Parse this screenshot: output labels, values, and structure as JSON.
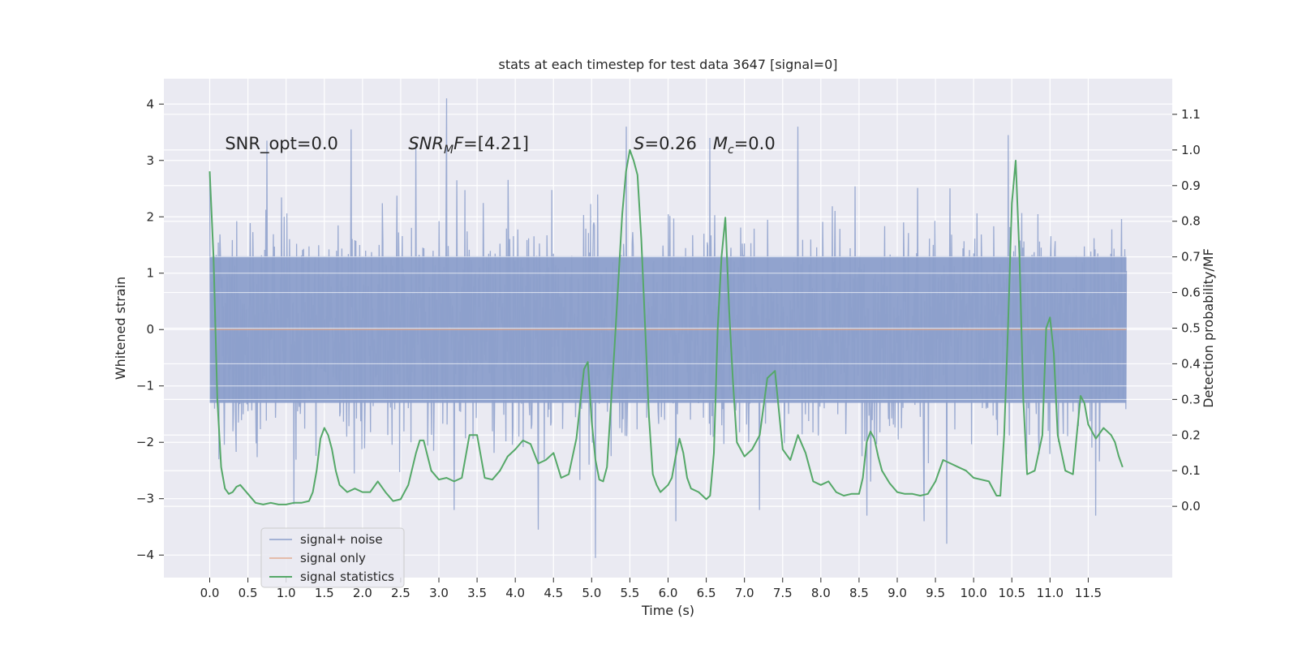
{
  "chart_data": {
    "type": "line",
    "title": "stats at each timestep for test data 3647 [signal=0]",
    "xlabel": "Time (s)",
    "ylabel": "Whitened strain",
    "y2label": "Detection probability/MF",
    "xlim": [
      -0.6,
      12.6
    ],
    "ylim": [
      -4.4,
      4.45
    ],
    "y2lim": [
      -0.2,
      1.2
    ],
    "x_ticks": [
      0.0,
      0.5,
      1.0,
      1.5,
      2.0,
      2.5,
      3.0,
      3.5,
      4.0,
      4.5,
      5.0,
      5.5,
      6.0,
      6.5,
      7.0,
      7.5,
      8.0,
      8.5,
      9.0,
      9.5,
      10.0,
      10.5,
      11.0,
      11.5
    ],
    "x_tick_labels": [
      "0.0",
      "0.5",
      "1.0",
      "1.5",
      "2.0",
      "2.5",
      "3.0",
      "3.5",
      "4.0",
      "4.5",
      "5.0",
      "5.5",
      "6.0",
      "6.5",
      "7.0",
      "7.5",
      "8.0",
      "8.5",
      "9.0",
      "9.5",
      "10.0",
      "10.5",
      "11.0",
      "11.5"
    ],
    "y_ticks": [
      -4,
      -3,
      -2,
      -1,
      0,
      1,
      2,
      3,
      4
    ],
    "y_tick_labels": [
      "−4",
      "−3",
      "−2",
      "−1",
      "0",
      "1",
      "2",
      "3",
      "4"
    ],
    "y2_ticks": [
      0.0,
      0.1,
      0.2,
      0.3,
      0.4,
      0.5,
      0.6,
      0.7,
      0.8,
      0.9,
      1.0,
      1.1
    ],
    "y2_tick_labels": [
      "0.0",
      "0.1",
      "0.2",
      "0.3",
      "0.4",
      "0.5",
      "0.6",
      "0.7",
      "0.8",
      "0.9",
      "1.0",
      "1.1"
    ],
    "grid": true,
    "legend_position": "lower-left",
    "annotations": [
      {
        "text": "SNR_opt=0.0",
        "x": 0.2,
        "y": 3.2
      },
      {
        "text": "SNR_MF=[4.21]",
        "x": 2.6,
        "y": 3.2
      },
      {
        "text": "S=0.26   M_c=0.0",
        "x": 5.55,
        "y": 3.2
      }
    ],
    "series": [
      {
        "name": "signal+ noise",
        "axis": "left",
        "color": "#8c9fcb",
        "style": "dense noise trace",
        "x_range": [
          0.0,
          12.0
        ],
        "core_band": [
          -1.3,
          1.3
        ],
        "extremes": [
          -4.05,
          4.1
        ],
        "peaks": [
          {
            "x": 0.0,
            "y": 2.75
          },
          {
            "x": 0.12,
            "y": -2.3
          },
          {
            "x": 0.75,
            "y": 3.35
          },
          {
            "x": 1.1,
            "y": -3.1
          },
          {
            "x": 1.85,
            "y": 3.55
          },
          {
            "x": 2.7,
            "y": 3.3
          },
          {
            "x": 3.1,
            "y": 4.1
          },
          {
            "x": 3.2,
            "y": -3.2
          },
          {
            "x": 4.3,
            "y": -3.55
          },
          {
            "x": 5.05,
            "y": -4.05
          },
          {
            "x": 5.45,
            "y": 3.6
          },
          {
            "x": 6.1,
            "y": -3.4
          },
          {
            "x": 6.55,
            "y": 3.4
          },
          {
            "x": 7.2,
            "y": -3.2
          },
          {
            "x": 7.7,
            "y": 3.6
          },
          {
            "x": 8.6,
            "y": -3.3
          },
          {
            "x": 9.35,
            "y": -3.4
          },
          {
            "x": 9.65,
            "y": -3.8
          },
          {
            "x": 10.45,
            "y": 3.45
          },
          {
            "x": 11.6,
            "y": -3.3
          }
        ]
      },
      {
        "name": "signal only",
        "axis": "left",
        "color": "#dd8452",
        "x": [
          0.0,
          12.0
        ],
        "y": [
          0.0,
          0.0
        ]
      },
      {
        "name": "signal statistics",
        "axis": "right",
        "color": "#55a868",
        "x": [
          0.0,
          0.05,
          0.1,
          0.15,
          0.2,
          0.25,
          0.3,
          0.35,
          0.4,
          0.5,
          0.6,
          0.7,
          0.8,
          0.9,
          1.0,
          1.1,
          1.2,
          1.3,
          1.35,
          1.4,
          1.45,
          1.5,
          1.55,
          1.6,
          1.65,
          1.7,
          1.8,
          1.9,
          2.0,
          2.1,
          2.2,
          2.3,
          2.4,
          2.5,
          2.6,
          2.7,
          2.75,
          2.8,
          2.9,
          3.0,
          3.1,
          3.2,
          3.3,
          3.4,
          3.5,
          3.6,
          3.7,
          3.8,
          3.9,
          4.0,
          4.1,
          4.2,
          4.3,
          4.4,
          4.5,
          4.6,
          4.7,
          4.8,
          4.9,
          4.95,
          5.0,
          5.05,
          5.1,
          5.15,
          5.2,
          5.3,
          5.4,
          5.45,
          5.5,
          5.55,
          5.6,
          5.65,
          5.7,
          5.75,
          5.8,
          5.85,
          5.9,
          6.0,
          6.05,
          6.1,
          6.15,
          6.2,
          6.25,
          6.3,
          6.4,
          6.5,
          6.55,
          6.6,
          6.65,
          6.7,
          6.75,
          6.8,
          6.85,
          6.9,
          7.0,
          7.1,
          7.2,
          7.3,
          7.4,
          7.5,
          7.6,
          7.7,
          7.8,
          7.9,
          8.0,
          8.1,
          8.2,
          8.3,
          8.4,
          8.5,
          8.55,
          8.6,
          8.65,
          8.7,
          8.75,
          8.8,
          8.9,
          9.0,
          9.1,
          9.2,
          9.3,
          9.4,
          9.5,
          9.6,
          9.7,
          9.8,
          9.9,
          10.0,
          10.1,
          10.2,
          10.3,
          10.35,
          10.4,
          10.45,
          10.5,
          10.55,
          10.6,
          10.65,
          10.7,
          10.8,
          10.9,
          10.95,
          11.0,
          11.05,
          11.1,
          11.2,
          11.3,
          11.35,
          11.4,
          11.45,
          11.5,
          11.6,
          11.7,
          11.8,
          11.85,
          11.9,
          11.95
        ],
        "y": [
          0.94,
          0.7,
          0.3,
          0.11,
          0.05,
          0.035,
          0.04,
          0.055,
          0.06,
          0.035,
          0.01,
          0.005,
          0.01,
          0.005,
          0.005,
          0.01,
          0.01,
          0.015,
          0.04,
          0.1,
          0.19,
          0.22,
          0.2,
          0.16,
          0.1,
          0.06,
          0.04,
          0.05,
          0.04,
          0.04,
          0.07,
          0.04,
          0.015,
          0.02,
          0.06,
          0.15,
          0.185,
          0.185,
          0.1,
          0.075,
          0.08,
          0.07,
          0.08,
          0.2,
          0.2,
          0.08,
          0.075,
          0.1,
          0.14,
          0.16,
          0.185,
          0.175,
          0.12,
          0.13,
          0.15,
          0.08,
          0.09,
          0.19,
          0.385,
          0.405,
          0.24,
          0.13,
          0.075,
          0.07,
          0.11,
          0.45,
          0.82,
          0.94,
          1.0,
          0.97,
          0.93,
          0.75,
          0.5,
          0.25,
          0.09,
          0.06,
          0.04,
          0.06,
          0.08,
          0.14,
          0.19,
          0.15,
          0.08,
          0.05,
          0.04,
          0.02,
          0.03,
          0.15,
          0.5,
          0.7,
          0.81,
          0.55,
          0.35,
          0.18,
          0.14,
          0.16,
          0.2,
          0.36,
          0.38,
          0.16,
          0.13,
          0.2,
          0.15,
          0.07,
          0.06,
          0.07,
          0.04,
          0.03,
          0.035,
          0.035,
          0.08,
          0.18,
          0.21,
          0.19,
          0.14,
          0.1,
          0.065,
          0.04,
          0.035,
          0.035,
          0.03,
          0.035,
          0.07,
          0.13,
          0.12,
          0.11,
          0.1,
          0.08,
          0.075,
          0.07,
          0.03,
          0.03,
          0.2,
          0.5,
          0.85,
          0.97,
          0.7,
          0.3,
          0.09,
          0.1,
          0.2,
          0.5,
          0.53,
          0.43,
          0.2,
          0.1,
          0.09,
          0.2,
          0.31,
          0.29,
          0.23,
          0.19,
          0.22,
          0.2,
          0.18,
          0.14,
          0.11
        ]
      }
    ]
  }
}
